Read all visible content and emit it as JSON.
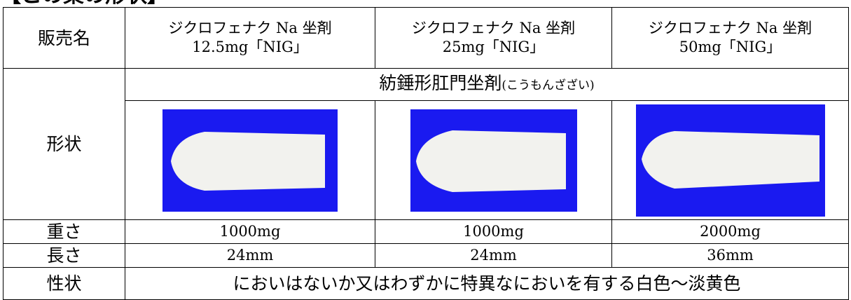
{
  "header": {
    "title": "【この薬の形状】"
  },
  "table": {
    "name_row": {
      "label": "販売名",
      "products": [
        [
          "ジクロフェナク Na 坐剤",
          "12.5mg「NIG」"
        ],
        [
          "ジクロフェナク Na 坐剤",
          "25mg「NIG」"
        ],
        [
          "ジクロフェナク Na 坐剤",
          "50mg「NIG」"
        ]
      ]
    },
    "shape_row": {
      "label": "形状",
      "description": "紡錘形肛門坐剤",
      "reading": "(こうもんざざい)"
    },
    "weight_row": {
      "label": "重さ",
      "values": [
        "1000mg",
        "1000mg",
        "2000mg"
      ]
    },
    "length_row": {
      "label": "長さ",
      "values": [
        "24mm",
        "24mm",
        "36mm"
      ]
    },
    "property_row": {
      "label": "性状",
      "text": "においはないか又はわずかに特異なにおいを有する白色～淡黄色"
    }
  }
}
